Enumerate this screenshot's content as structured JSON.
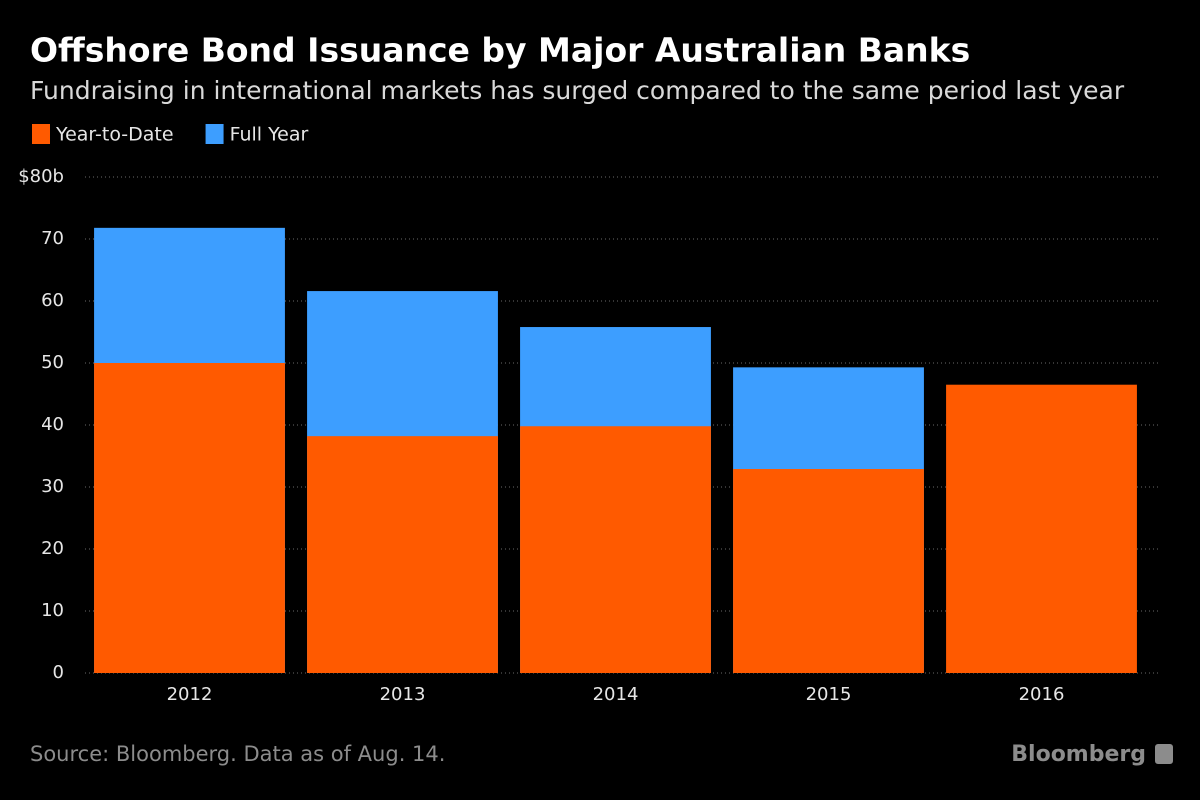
{
  "chart_data": {
    "type": "bar",
    "barmode": "overlay",
    "title": "Offshore Bond Issuance by Major Australian Banks",
    "subtitle": "Fundraising in international markets has surged compared to the same period last year",
    "categories": [
      "2012",
      "2013",
      "2014",
      "2015",
      "2016"
    ],
    "series": [
      {
        "name": "Year-to-Date",
        "color": "#ff5a00",
        "values": [
          50,
          38.2,
          39.8,
          32.9,
          46.5
        ]
      },
      {
        "name": "Full Year",
        "color": "#3d9eff",
        "values": [
          71.8,
          61.6,
          55.8,
          49.3,
          null
        ]
      }
    ],
    "ylim": [
      0,
      80
    ],
    "yticks": [
      0,
      10,
      20,
      30,
      40,
      50,
      60,
      70,
      {
        "value": 80,
        "label": "$80b"
      }
    ],
    "grid": true,
    "legend": "top-left",
    "source": "Source: Bloomberg. Data as of Aug. 14.",
    "logo": "Bloomberg"
  }
}
